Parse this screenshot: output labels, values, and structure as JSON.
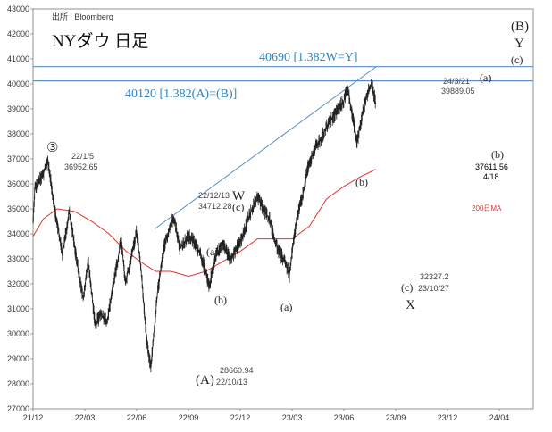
{
  "chart_data": {
    "type": "line",
    "title": "NYダウ 日足",
    "source": "出所 | Bloomberg",
    "ylim": [
      27000,
      43000
    ],
    "y_ticks": [
      "27000",
      "28000",
      "29000",
      "30000",
      "31000",
      "32000",
      "33000",
      "34000",
      "35000",
      "36000",
      "37000",
      "38000",
      "39000",
      "40000",
      "41000",
      "42000",
      "43000"
    ],
    "x_ticks": [
      "21/12",
      "22/03",
      "22/06",
      "22/09",
      "22/12",
      "23/03",
      "23/06",
      "23/09",
      "23/12",
      "24/04"
    ],
    "price_anchors": [
      {
        "t": 0.0,
        "v": 34500
      },
      {
        "t": 0.1,
        "v": 35800
      },
      {
        "t": 0.6,
        "v": 36400
      },
      {
        "t": 0.85,
        "v": 36952.65
      },
      {
        "t": 1.3,
        "v": 34800
      },
      {
        "t": 1.7,
        "v": 33200
      },
      {
        "t": 2.1,
        "v": 34900
      },
      {
        "t": 2.5,
        "v": 33100
      },
      {
        "t": 2.9,
        "v": 31400
      },
      {
        "t": 3.2,
        "v": 32900
      },
      {
        "t": 3.6,
        "v": 30300
      },
      {
        "t": 3.9,
        "v": 30800
      },
      {
        "t": 4.3,
        "v": 30500
      },
      {
        "t": 4.6,
        "v": 31800
      },
      {
        "t": 4.9,
        "v": 32900
      },
      {
        "t": 5.1,
        "v": 33800
      },
      {
        "t": 5.35,
        "v": 32000
      },
      {
        "t": 5.7,
        "v": 33100
      },
      {
        "t": 6.0,
        "v": 34100
      },
      {
        "t": 6.25,
        "v": 32600
      },
      {
        "t": 6.6,
        "v": 29600
      },
      {
        "t": 6.82,
        "v": 28660.94
      },
      {
        "t": 7.2,
        "v": 31600
      },
      {
        "t": 7.6,
        "v": 33500
      },
      {
        "t": 7.85,
        "v": 34100
      },
      {
        "t": 8.15,
        "v": 34712.28
      },
      {
        "t": 8.5,
        "v": 33400
      },
      {
        "t": 9.0,
        "v": 33900
      },
      {
        "t": 9.3,
        "v": 33700
      },
      {
        "t": 9.7,
        "v": 33200
      },
      {
        "t": 10.05,
        "v": 32300
      },
      {
        "t": 10.2,
        "v": 31900
      },
      {
        "t": 10.6,
        "v": 33200
      },
      {
        "t": 11.0,
        "v": 33600
      },
      {
        "t": 11.4,
        "v": 33000
      },
      {
        "t": 11.7,
        "v": 33300
      },
      {
        "t": 12.1,
        "v": 33800
      },
      {
        "t": 12.45,
        "v": 34600
      },
      {
        "t": 12.75,
        "v": 35100
      },
      {
        "t": 13.0,
        "v": 35500
      },
      {
        "t": 13.4,
        "v": 34900
      },
      {
        "t": 13.7,
        "v": 34600
      },
      {
        "t": 14.0,
        "v": 33700
      },
      {
        "t": 14.3,
        "v": 33200
      },
      {
        "t": 14.6,
        "v": 32900
      },
      {
        "t": 14.85,
        "v": 32327.2
      },
      {
        "t": 15.05,
        "v": 33500
      },
      {
        "t": 15.3,
        "v": 34700
      },
      {
        "t": 15.6,
        "v": 35500
      },
      {
        "t": 15.9,
        "v": 36600
      },
      {
        "t": 16.3,
        "v": 37400
      },
      {
        "t": 16.7,
        "v": 37800
      },
      {
        "t": 17.0,
        "v": 38300
      },
      {
        "t": 17.4,
        "v": 38700
      },
      {
        "t": 17.75,
        "v": 39100
      },
      {
        "t": 18.0,
        "v": 39300
      },
      {
        "t": 18.2,
        "v": 39889.05
      },
      {
        "t": 18.5,
        "v": 38700
      },
      {
        "t": 18.75,
        "v": 37611.56
      },
      {
        "t": 19.1,
        "v": 38900
      },
      {
        "t": 19.4,
        "v": 39700
      },
      {
        "t": 19.6,
        "v": 40050
      },
      {
        "t": 19.85,
        "v": 39200
      }
    ],
    "ma200_anchors": [
      {
        "t": 0.0,
        "v": 33900
      },
      {
        "t": 0.6,
        "v": 34600
      },
      {
        "t": 1.4,
        "v": 35000
      },
      {
        "t": 2.4,
        "v": 34900
      },
      {
        "t": 3.4,
        "v": 34500
      },
      {
        "t": 4.4,
        "v": 34000
      },
      {
        "t": 5.4,
        "v": 33300
      },
      {
        "t": 6.4,
        "v": 32800
      },
      {
        "t": 7.1,
        "v": 32500
      },
      {
        "t": 8.0,
        "v": 32500
      },
      {
        "t": 9.0,
        "v": 32300
      },
      {
        "t": 10.0,
        "v": 32500
      },
      {
        "t": 11.0,
        "v": 32900
      },
      {
        "t": 12.0,
        "v": 33300
      },
      {
        "t": 13.0,
        "v": 33800
      },
      {
        "t": 14.0,
        "v": 33800
      },
      {
        "t": 15.0,
        "v": 33800
      },
      {
        "t": 16.0,
        "v": 34300
      },
      {
        "t": 17.0,
        "v": 35400
      },
      {
        "t": 18.0,
        "v": 35900
      },
      {
        "t": 19.0,
        "v": 36300
      },
      {
        "t": 19.9,
        "v": 36600
      }
    ],
    "horizontal_levels": [
      {
        "value": 40690,
        "label": "40690 [1.382W=Y]"
      },
      {
        "value": 40120,
        "label": "40120 [1.382(A)=(B)]"
      }
    ],
    "trendline": {
      "start": {
        "t": 7.05,
        "v": 34200
      },
      "end": {
        "t": 19.9,
        "v": 40700
      }
    },
    "ma_label": "200日MA",
    "annotations": [
      {
        "id": "peak-2022-01",
        "date": "22/1/5",
        "value": "36952.65",
        "wave": "③"
      },
      {
        "id": "low-2022-10",
        "date": "22/10/13",
        "value": "28660.94",
        "wave": "(A)"
      },
      {
        "id": "high-2022-12",
        "date": "22/12/13",
        "value": "34712.28",
        "wave": "W"
      },
      {
        "id": "low-2023-10",
        "date": "23/10/27",
        "value": "32327.2",
        "wave": "X"
      },
      {
        "id": "high-2024-03",
        "date": "24/3/21",
        "value": "39889.05",
        "wave": "(a)"
      },
      {
        "id": "low-2024-04",
        "date": "4/18",
        "value": "37611.56",
        "wave": "(b)"
      }
    ],
    "wave_labels": [
      "(a)",
      "(b)",
      "(c)",
      "(a)",
      "(b)",
      "(c)",
      "(a)",
      "(b)",
      "(c)",
      "(B)",
      "Y"
    ]
  }
}
